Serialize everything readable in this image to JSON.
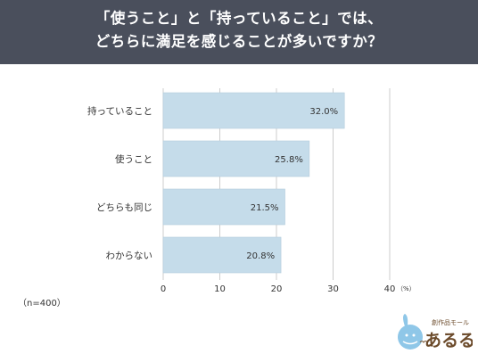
{
  "header": {
    "line1": "「使うこと」と「持っていること」では、",
    "line2": "どちらに満足を感じることが多いですか？"
  },
  "note": "（n=400）",
  "colors": {
    "header_bg": "#4a4f5c",
    "bar": "#c5dcea",
    "bar_stroke": "#b4ccdc",
    "grid": "#cccccc"
  },
  "chart_data": {
    "type": "bar",
    "orientation": "horizontal",
    "categories": [
      "持っていること",
      "使うこと",
      "どちらも同じ",
      "わからない"
    ],
    "values": [
      32.0,
      25.8,
      21.5,
      20.8
    ],
    "value_labels": [
      "32.0%",
      "25.8%",
      "21.5%",
      "20.8%"
    ],
    "xlim": [
      0,
      40
    ],
    "xticks": [
      0,
      10,
      20,
      30,
      40
    ],
    "x_unit": "（%）",
    "grid": true
  },
  "logo": {
    "small_text": "創作品モール",
    "big_text": "あるる"
  }
}
